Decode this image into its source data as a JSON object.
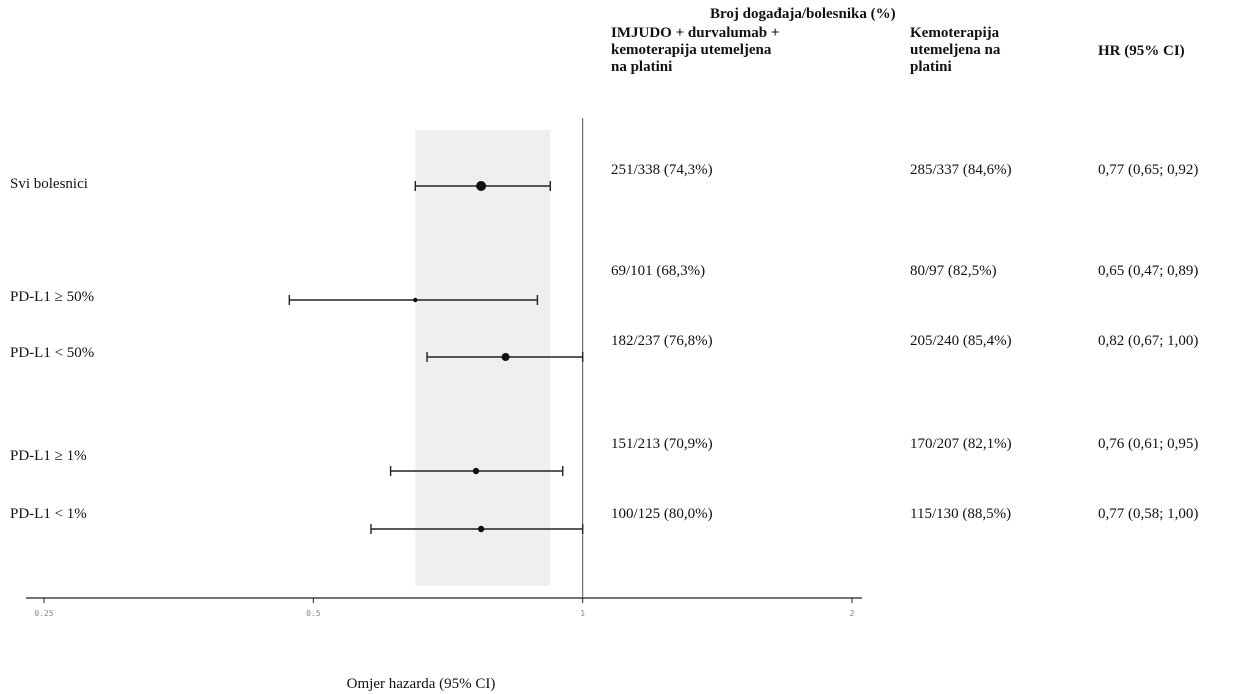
{
  "header": {
    "title": "Broj događaja/bolesnika (%)",
    "col_treatment": "IMJUDO + durvalumab +\nkemoterapija utemeljena\nna platini",
    "col_control": "Kemoterapija\nutemeljena na\nplatini",
    "col_hr": "HR  (95% CI)"
  },
  "rows": [
    {
      "label": "Svi bolesnici",
      "treatment": "251/338 (74,3%)",
      "control": "285/337 (84,6%)",
      "hr_text": "0,77 (0,65; 0,92)"
    },
    {
      "label": "PD-L1 ≥ 50%",
      "treatment": "69/101 (68,3%)",
      "control": "80/97 (82,5%)",
      "hr_text": "0,65 (0,47; 0,89)"
    },
    {
      "label": "PD-L1 < 50%",
      "treatment": "182/237 (76,8%)",
      "control": "205/240 (85,4%)",
      "hr_text": "0,82 (0,67; 1,00)"
    },
    {
      "label": "PD-L1 ≥ 1%",
      "treatment": "151/213 (70,9%)",
      "control": "170/207 (82,1%)",
      "hr_text": "0,76 (0,61; 0,95)"
    },
    {
      "label": "PD-L1 < 1%",
      "treatment": "100/125 (80,0%)",
      "control": "115/130 (88,5%)",
      "hr_text": "0,77 (0,58; 1,00)"
    }
  ],
  "chart_data": {
    "type": "forest",
    "xscale": "log",
    "xlim": [
      0.25,
      2
    ],
    "xticks": [
      "0.25",
      "0.5",
      "1",
      "2"
    ],
    "xlabel": "Omjer hazarda (95% CI)",
    "reference_line": 1,
    "overall_ci_band": [
      0.65,
      0.92
    ],
    "points": [
      {
        "hr": 0.77,
        "lo": 0.65,
        "hi": 0.92
      },
      {
        "hr": 0.65,
        "lo": 0.47,
        "hi": 0.89
      },
      {
        "hr": 0.82,
        "lo": 0.67,
        "hi": 1.0
      },
      {
        "hr": 0.76,
        "lo": 0.61,
        "hi": 0.95
      },
      {
        "hr": 0.77,
        "lo": 0.58,
        "hi": 1.0
      }
    ]
  }
}
